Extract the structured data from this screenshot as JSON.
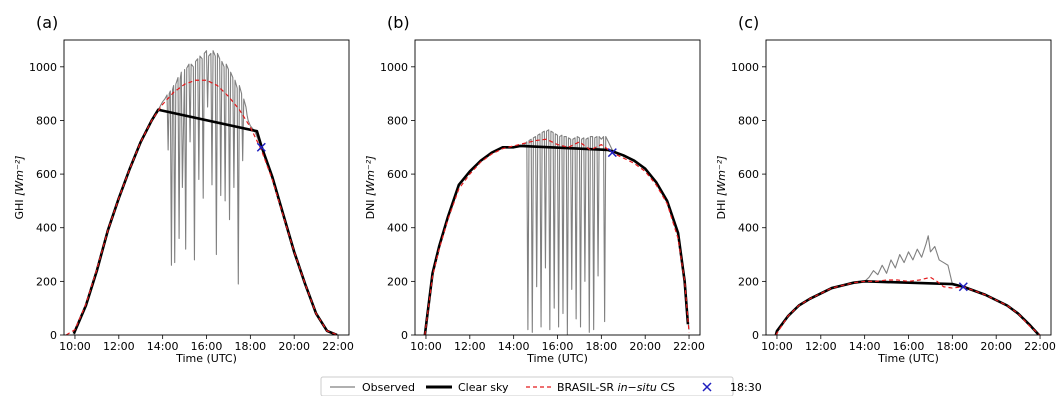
{
  "legend": {
    "placement": "bottom-center",
    "entries": [
      {
        "label": "Observed",
        "color": "#808080",
        "style": "solid-thin"
      },
      {
        "label": "Clear sky",
        "color": "#000000",
        "style": "solid-thick"
      },
      {
        "label_parts": [
          "BRASIL-SR ",
          "in−situ",
          " CS"
        ],
        "color": "#e31a1c",
        "style": "dashed"
      },
      {
        "label": "18:30",
        "color": "#1f1fbf",
        "style": "x-marker"
      }
    ]
  },
  "chart_data": [
    {
      "type": "line",
      "panel_label": "(a)",
      "xlabel": "Time (UTC)",
      "ylabel_main": "GHI ",
      "ylabel_unit": "[Wm⁻²]",
      "xlim": [
        9.5,
        22.5
      ],
      "ylim": [
        0,
        1100
      ],
      "xticks": [
        10,
        12,
        14,
        16,
        18,
        20,
        22
      ],
      "xtick_labels": [
        "10:00",
        "12:00",
        "14:00",
        "16:00",
        "18:00",
        "20:00",
        "22:00"
      ],
      "yticks": [
        0,
        200,
        400,
        600,
        800,
        1000
      ],
      "ytick_labels": [
        "0",
        "200",
        "400",
        "600",
        "800",
        "1000"
      ],
      "marker_1830": {
        "x": 18.5,
        "y": 700
      },
      "series": [
        {
          "name": "Observed",
          "color": "#808080",
          "x": [
            9.95,
            10.0,
            10.5,
            11.0,
            11.3,
            11.7,
            12.0,
            12.5,
            13.0,
            13.5,
            13.8,
            14.0,
            14.1,
            14.2,
            14.25,
            14.3,
            14.35,
            14.4,
            14.45,
            14.5,
            14.55,
            14.6,
            14.7,
            14.75,
            14.8,
            14.85,
            14.9,
            15.0,
            15.05,
            15.1,
            15.2,
            15.25,
            15.3,
            15.4,
            15.45,
            15.5,
            15.6,
            15.65,
            15.7,
            15.8,
            15.85,
            15.9,
            16.0,
            16.05,
            16.1,
            16.2,
            16.25,
            16.3,
            16.4,
            16.45,
            16.5,
            16.6,
            16.65,
            16.7,
            16.8,
            16.85,
            16.9,
            17.0,
            17.05,
            17.1,
            17.2,
            17.25,
            17.3,
            17.4,
            17.45,
            17.5,
            17.6,
            17.65,
            17.7,
            17.8,
            17.85,
            17.9,
            18.0,
            18.2,
            18.5,
            19.0,
            19.5,
            20.0,
            20.5,
            21.0,
            21.5,
            22.0,
            22.1
          ],
          "y": [
            0,
            10,
            110,
            240,
            330,
            440,
            510,
            620,
            720,
            800,
            840,
            870,
            880,
            895,
            690,
            900,
            910,
            260,
            915,
            930,
            270,
            935,
            960,
            360,
            955,
            980,
            550,
            990,
            320,
            995,
            1010,
            720,
            1010,
            1000,
            280,
            1020,
            1030,
            580,
            1040,
            1030,
            510,
            1050,
            1060,
            850,
            1040,
            1050,
            560,
            1060,
            1040,
            300,
            1050,
            1030,
            520,
            1020,
            1000,
            500,
            1010,
            990,
            430,
            980,
            960,
            550,
            950,
            920,
            190,
            930,
            900,
            650,
            880,
            850,
            820,
            800,
            780,
            760,
            700,
            580,
            440,
            300,
            190,
            80,
            15,
            0,
            0
          ]
        },
        {
          "name": "Clear sky",
          "color": "#000000",
          "x": [
            9.95,
            10.5,
            11.0,
            11.5,
            12.0,
            12.5,
            13.0,
            13.5,
            13.8,
            18.3,
            18.5,
            19.0,
            19.5,
            20.0,
            20.5,
            21.0,
            21.5,
            21.95
          ],
          "y": [
            5,
            110,
            240,
            390,
            510,
            620,
            720,
            800,
            840,
            760,
            705,
            590,
            450,
            310,
            190,
            80,
            15,
            0
          ]
        },
        {
          "name": "BRASIL-SR in-situ CS",
          "color": "#e31a1c",
          "x": [
            9.6,
            10.0,
            10.5,
            11.0,
            11.5,
            12.0,
            12.5,
            13.0,
            13.5,
            14.0,
            14.5,
            15.0,
            15.5,
            16.0,
            16.5,
            17.0,
            17.5,
            18.0,
            18.5,
            19.0,
            19.5,
            20.0,
            20.5,
            21.0,
            21.5,
            22.0
          ],
          "y": [
            0,
            20,
            115,
            245,
            390,
            510,
            620,
            720,
            800,
            860,
            905,
            935,
            950,
            950,
            930,
            890,
            840,
            775,
            690,
            580,
            445,
            310,
            190,
            80,
            15,
            0
          ]
        }
      ]
    },
    {
      "type": "line",
      "panel_label": "(b)",
      "xlabel": "Time (UTC)",
      "ylabel_main": "DNI ",
      "ylabel_unit": "[Wm⁻²]",
      "xlim": [
        9.5,
        22.5
      ],
      "ylim": [
        0,
        1100
      ],
      "xticks": [
        10,
        12,
        14,
        16,
        18,
        20,
        22
      ],
      "xtick_labels": [
        "10:00",
        "12:00",
        "14:00",
        "16:00",
        "18:00",
        "20:00",
        "22:00"
      ],
      "yticks": [
        0,
        200,
        400,
        600,
        800,
        1000
      ],
      "ytick_labels": [
        "0",
        "200",
        "400",
        "600",
        "800",
        "1000"
      ],
      "marker_1830": {
        "x": 18.5,
        "y": 680
      },
      "series": [
        {
          "name": "Observed",
          "color": "#808080",
          "x": [
            9.95,
            10.0,
            10.3,
            10.6,
            11.0,
            11.5,
            12.0,
            12.5,
            13.0,
            13.5,
            14.0,
            14.3,
            14.5,
            14.6,
            14.65,
            14.7,
            14.8,
            14.85,
            14.9,
            15.0,
            15.05,
            15.1,
            15.2,
            15.25,
            15.3,
            15.4,
            15.45,
            15.5,
            15.6,
            15.65,
            15.7,
            15.8,
            15.85,
            15.9,
            16.0,
            16.05,
            16.1,
            16.2,
            16.25,
            16.3,
            16.4,
            16.45,
            16.5,
            16.6,
            16.65,
            16.7,
            16.8,
            16.85,
            16.9,
            17.0,
            17.05,
            17.1,
            17.2,
            17.25,
            17.3,
            17.4,
            17.45,
            17.5,
            17.6,
            17.65,
            17.7,
            17.8,
            17.85,
            17.9,
            18.0,
            18.1,
            18.15,
            18.2,
            18.5,
            19.0,
            19.5,
            20.0,
            20.5,
            21.0,
            21.5,
            21.8,
            22.0
          ],
          "y": [
            0,
            50,
            230,
            330,
            440,
            560,
            610,
            650,
            680,
            700,
            700,
            705,
            710,
            720,
            20,
            725,
            730,
            10,
            735,
            740,
            180,
            745,
            750,
            30,
            755,
            760,
            250,
            760,
            765,
            20,
            760,
            755,
            100,
            750,
            745,
            30,
            740,
            745,
            80,
            740,
            740,
            0,
            735,
            730,
            170,
            730,
            735,
            60,
            740,
            735,
            30,
            730,
            735,
            200,
            730,
            735,
            10,
            740,
            740,
            20,
            735,
            740,
            220,
            740,
            730,
            740,
            50,
            740,
            690,
            670,
            650,
            620,
            570,
            500,
            380,
            200,
            20
          ]
        },
        {
          "name": "Clear sky",
          "color": "#000000",
          "x": [
            9.95,
            10.3,
            10.6,
            11.0,
            11.5,
            12.0,
            12.5,
            13.0,
            13.5,
            14.0,
            14.3,
            18.3,
            18.5,
            19.0,
            19.5,
            20.0,
            20.5,
            21.0,
            21.5,
            21.8,
            21.95
          ],
          "y": [
            0,
            230,
            330,
            440,
            560,
            610,
            650,
            680,
            700,
            700,
            705,
            690,
            685,
            670,
            650,
            620,
            570,
            500,
            380,
            200,
            40
          ]
        },
        {
          "name": "BRASIL-SR in-situ CS",
          "color": "#e31a1c",
          "x": [
            9.95,
            10.3,
            10.6,
            11.0,
            11.5,
            12.0,
            12.5,
            13.0,
            13.5,
            14.0,
            14.5,
            15.0,
            15.5,
            16.0,
            16.5,
            17.0,
            17.5,
            18.0,
            18.5,
            19.0,
            19.5,
            20.0,
            20.5,
            21.0,
            21.5,
            21.8,
            22.0
          ],
          "y": [
            0,
            220,
            320,
            430,
            545,
            600,
            645,
            675,
            695,
            705,
            715,
            725,
            730,
            710,
            700,
            720,
            690,
            710,
            680,
            660,
            640,
            610,
            560,
            490,
            360,
            200,
            10
          ]
        }
      ]
    },
    {
      "type": "line",
      "panel_label": "(c)",
      "xlabel": "Time (UTC)",
      "ylabel_main": "DHI ",
      "ylabel_unit": "[Wm⁻²]",
      "xlim": [
        9.5,
        22.5
      ],
      "ylim": [
        0,
        1100
      ],
      "xticks": [
        10,
        12,
        14,
        16,
        18,
        20,
        22
      ],
      "xtick_labels": [
        "10:00",
        "12:00",
        "14:00",
        "16:00",
        "18:00",
        "20:00",
        "22:00"
      ],
      "yticks": [
        0,
        200,
        400,
        600,
        800,
        1000
      ],
      "ytick_labels": [
        "0",
        "200",
        "400",
        "600",
        "800",
        "1000"
      ],
      "marker_1830": {
        "x": 18.5,
        "y": 180
      },
      "series": [
        {
          "name": "Observed",
          "color": "#808080",
          "x": [
            9.95,
            10.0,
            10.5,
            11.0,
            11.5,
            12.0,
            12.5,
            13.0,
            13.5,
            14.0,
            14.2,
            14.4,
            14.6,
            14.8,
            15.0,
            15.2,
            15.4,
            15.6,
            15.8,
            16.0,
            16.2,
            16.4,
            16.6,
            16.8,
            16.9,
            17.0,
            17.2,
            17.4,
            17.6,
            17.8,
            18.0,
            18.5,
            19.0,
            19.5,
            20.0,
            20.5,
            21.0,
            21.5,
            22.0
          ],
          "y": [
            0,
            15,
            70,
            110,
            135,
            155,
            175,
            185,
            195,
            200,
            215,
            240,
            225,
            260,
            230,
            280,
            250,
            300,
            270,
            310,
            280,
            320,
            290,
            340,
            370,
            310,
            330,
            280,
            270,
            260,
            190,
            180,
            165,
            150,
            130,
            110,
            80,
            40,
            0
          ]
        },
        {
          "name": "Clear sky",
          "color": "#000000",
          "x": [
            9.95,
            10.0,
            10.5,
            11.0,
            11.5,
            12.0,
            12.5,
            13.0,
            13.5,
            14.0,
            18.0,
            18.5,
            19.0,
            19.5,
            20.0,
            20.5,
            21.0,
            21.5,
            21.95
          ],
          "y": [
            0,
            15,
            70,
            110,
            135,
            155,
            175,
            185,
            195,
            200,
            190,
            180,
            165,
            150,
            130,
            110,
            80,
            40,
            0
          ]
        },
        {
          "name": "BRASIL-SR in-situ CS",
          "color": "#e31a1c",
          "x": [
            9.95,
            10.5,
            11.0,
            11.5,
            12.0,
            12.5,
            13.0,
            13.5,
            14.0,
            14.5,
            15.0,
            15.5,
            16.0,
            16.5,
            17.0,
            17.3,
            17.6,
            18.0,
            18.5,
            19.0,
            19.5,
            20.0,
            20.5,
            21.0,
            21.5,
            22.0
          ],
          "y": [
            0,
            70,
            110,
            135,
            155,
            175,
            185,
            195,
            200,
            200,
            205,
            205,
            200,
            205,
            215,
            200,
            180,
            175,
            180,
            165,
            150,
            130,
            110,
            80,
            35,
            0
          ]
        }
      ]
    }
  ]
}
